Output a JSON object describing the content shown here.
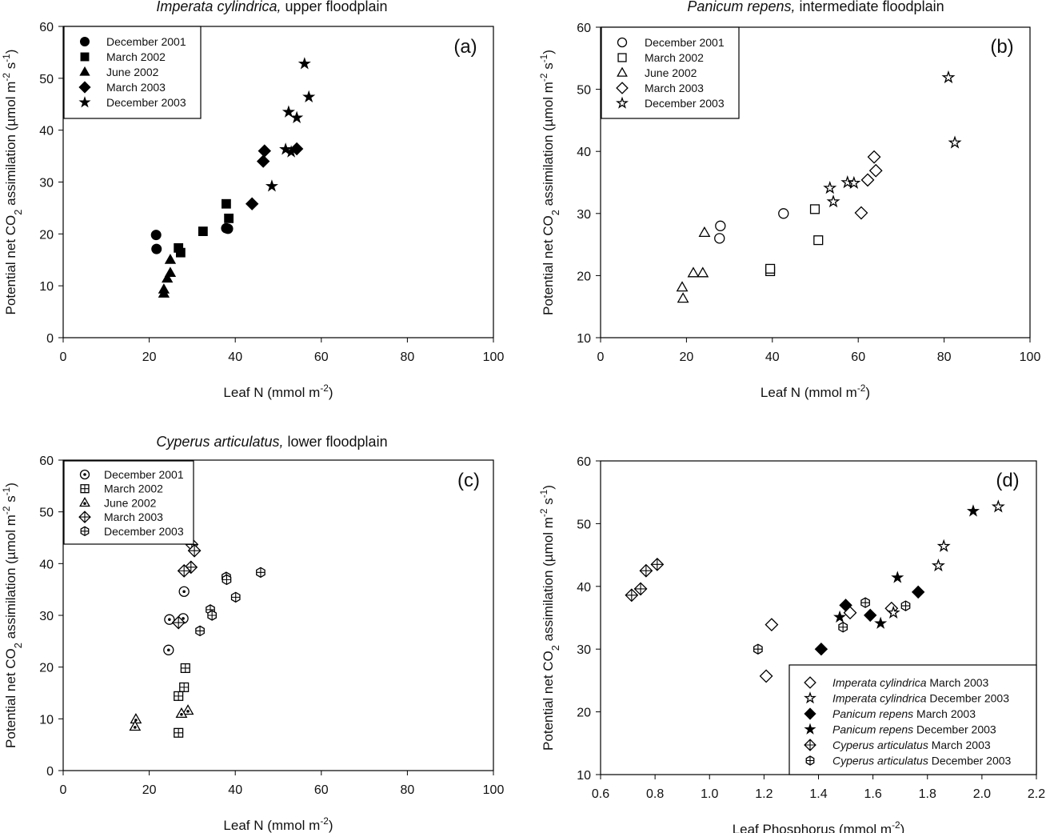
{
  "chart_data": [
    {
      "type": "scatter",
      "panel_label": "(a)",
      "title": [
        {
          "t": "Imperata cylindrica,",
          "i": true
        },
        {
          "t": " upper floodplain"
        }
      ],
      "xlabel": [
        {
          "t": "Leaf N (mmol m"
        },
        {
          "t": "-2",
          "sup": true
        },
        {
          "t": ")"
        }
      ],
      "ylabel": [
        {
          "t": "Potential net CO"
        },
        {
          "t": "2",
          "sub": true
        },
        {
          "t": " assimilation (µmol m"
        },
        {
          "t": "-2",
          "sup": true
        },
        {
          "t": " s"
        },
        {
          "t": "-1",
          "sup": true
        },
        {
          "t": ")"
        }
      ],
      "xlim": [
        0,
        100
      ],
      "ylim": [
        0,
        60
      ],
      "xticks": [
        0,
        20,
        40,
        60,
        80,
        100
      ],
      "yticks": [
        0,
        10,
        20,
        30,
        40,
        50,
        60
      ],
      "xtick_fmt": 0,
      "legend_placement": "top-left",
      "series": [
        {
          "name": "December 2001",
          "marker": "circle",
          "fill": true,
          "points": [
            [
              21.6,
              19.8
            ],
            [
              21.7,
              17.1
            ],
            [
              37.9,
              21.1
            ],
            [
              38.3,
              21.0
            ]
          ]
        },
        {
          "name": "March 2002",
          "marker": "square",
          "fill": true,
          "points": [
            [
              37.9,
              25.8
            ],
            [
              38.5,
              23.0
            ],
            [
              32.5,
              20.5
            ],
            [
              26.8,
              17.3
            ],
            [
              27.3,
              16.4
            ]
          ]
        },
        {
          "name": "June 2002",
          "marker": "triangle",
          "fill": true,
          "points": [
            [
              24.9,
              15.0
            ],
            [
              24.9,
              12.5
            ],
            [
              24.2,
              11.4
            ],
            [
              23.4,
              9.3
            ],
            [
              23.4,
              8.5
            ]
          ]
        },
        {
          "name": "March 2003",
          "marker": "diamond",
          "fill": true,
          "points": [
            [
              46.8,
              36.0
            ],
            [
              46.5,
              34.0
            ],
            [
              43.9,
              25.8
            ],
            [
              54.3,
              36.4
            ]
          ]
        },
        {
          "name": "December 2003",
          "marker": "star",
          "fill": true,
          "points": [
            [
              56.1,
              52.8
            ],
            [
              57.1,
              46.4
            ],
            [
              52.4,
              43.5
            ],
            [
              54.3,
              42.4
            ],
            [
              51.7,
              36.3
            ],
            [
              53.0,
              35.8
            ],
            [
              48.5,
              29.2
            ]
          ]
        }
      ]
    },
    {
      "type": "scatter",
      "panel_label": "(b)",
      "title": [
        {
          "t": "Panicum repens,",
          "i": true
        },
        {
          "t": " intermediate floodplain"
        }
      ],
      "xlabel": [
        {
          "t": "Leaf N (mmol m"
        },
        {
          "t": "-2",
          "sup": true
        },
        {
          "t": ")"
        }
      ],
      "ylabel": [
        {
          "t": "Potential net CO"
        },
        {
          "t": "2",
          "sub": true
        },
        {
          "t": " assimilation (µmol m"
        },
        {
          "t": "-2",
          "sup": true
        },
        {
          "t": " s"
        },
        {
          "t": "-1",
          "sup": true
        },
        {
          "t": ")"
        }
      ],
      "xlim": [
        0,
        100
      ],
      "ylim": [
        10,
        60
      ],
      "xticks": [
        0,
        20,
        40,
        60,
        80,
        100
      ],
      "yticks": [
        10,
        20,
        30,
        40,
        50,
        60
      ],
      "xtick_fmt": 0,
      "legend_placement": "top-left",
      "series": [
        {
          "name": "December 2001",
          "marker": "circle",
          "fill": false,
          "points": [
            [
              42.6,
              30.0
            ],
            [
              27.9,
              28.0
            ],
            [
              27.7,
              26.0
            ]
          ]
        },
        {
          "name": "March 2002",
          "marker": "square",
          "fill": false,
          "points": [
            [
              49.9,
              30.7
            ],
            [
              50.7,
              25.7
            ],
            [
              39.5,
              20.7
            ],
            [
              39.5,
              21.1
            ]
          ]
        },
        {
          "name": "June 2002",
          "marker": "triangle",
          "fill": false,
          "points": [
            [
              24.2,
              26.9
            ],
            [
              21.6,
              20.4
            ],
            [
              23.8,
              20.4
            ],
            [
              19.0,
              18.1
            ],
            [
              19.2,
              16.3
            ]
          ]
        },
        {
          "name": "March 2003",
          "marker": "diamond",
          "fill": false,
          "points": [
            [
              63.7,
              39.1
            ],
            [
              64.1,
              36.9
            ],
            [
              62.2,
              35.4
            ],
            [
              60.7,
              30.1
            ]
          ]
        },
        {
          "name": "December 2003",
          "marker": "star",
          "fill": false,
          "points": [
            [
              81.0,
              51.9
            ],
            [
              82.5,
              41.4
            ],
            [
              53.4,
              34.1
            ],
            [
              54.2,
              31.9
            ],
            [
              57.5,
              35.0
            ],
            [
              59.0,
              34.9
            ]
          ]
        }
      ]
    },
    {
      "type": "scatter",
      "panel_label": "(c)",
      "title": [
        {
          "t": "Cyperus articulatus,",
          "i": true
        },
        {
          "t": " lower floodplain"
        }
      ],
      "xlabel": [
        {
          "t": "Leaf N (mmol m"
        },
        {
          "t": "-2",
          "sup": true
        },
        {
          "t": ")"
        }
      ],
      "ylabel": [
        {
          "t": "Potential net CO"
        },
        {
          "t": "2",
          "sub": true
        },
        {
          "t": " assimilation (µmol m"
        },
        {
          "t": "-2",
          "sup": true
        },
        {
          "t": " s"
        },
        {
          "t": "-1",
          "sup": true
        },
        {
          "t": ")"
        }
      ],
      "xlim": [
        0,
        100
      ],
      "ylim": [
        0,
        60
      ],
      "xticks": [
        0,
        20,
        40,
        60,
        80,
        100
      ],
      "yticks": [
        0,
        10,
        20,
        30,
        40,
        50,
        60
      ],
      "xtick_fmt": 0,
      "legend_placement": "top-left",
      "series": [
        {
          "name": "December 2001",
          "marker": "circle-dot",
          "fill": false,
          "points": [
            [
              28.1,
              34.6
            ],
            [
              24.7,
              29.2
            ],
            [
              27.9,
              29.4
            ],
            [
              24.5,
              23.3
            ]
          ]
        },
        {
          "name": "March 2002",
          "marker": "square-cross",
          "fill": false,
          "points": [
            [
              28.4,
              19.8
            ],
            [
              28.1,
              16.1
            ],
            [
              26.8,
              14.4
            ],
            [
              26.8,
              7.3
            ]
          ]
        },
        {
          "name": "June 2002",
          "marker": "triangle-dot",
          "fill": false,
          "points": [
            [
              29.0,
              11.6
            ],
            [
              27.5,
              11.0
            ],
            [
              16.9,
              9.9
            ],
            [
              16.7,
              8.5
            ]
          ]
        },
        {
          "name": "March 2003",
          "marker": "diamond-cross",
          "fill": false,
          "points": [
            [
              29.9,
              43.7
            ],
            [
              30.5,
              42.5
            ],
            [
              29.7,
              39.3
            ],
            [
              28.1,
              38.6
            ],
            [
              26.8,
              28.6
            ]
          ]
        },
        {
          "name": "December 2003",
          "marker": "hex-cross",
          "fill": false,
          "points": [
            [
              45.9,
              38.3
            ],
            [
              37.9,
              37.4
            ],
            [
              38.0,
              36.9
            ],
            [
              40.1,
              33.5
            ],
            [
              34.2,
              31.1
            ],
            [
              34.6,
              30.0
            ],
            [
              31.8,
              27.0
            ]
          ]
        }
      ]
    },
    {
      "type": "scatter",
      "panel_label": "(d)",
      "title": [],
      "xlabel": [
        {
          "t": "Leaf Phosphorus (mmol m"
        },
        {
          "t": "-2",
          "sup": true
        },
        {
          "t": ")"
        }
      ],
      "ylabel": [
        {
          "t": "Potential net CO"
        },
        {
          "t": "2",
          "sub": true
        },
        {
          "t": " assimilation (µmol m"
        },
        {
          "t": "-2",
          "sup": true
        },
        {
          "t": " s"
        },
        {
          "t": "-1",
          "sup": true
        },
        {
          "t": ")"
        }
      ],
      "xlim": [
        0.6,
        2.2
      ],
      "ylim": [
        10,
        60
      ],
      "xticks": [
        0.6,
        0.8,
        1.0,
        1.2,
        1.4,
        1.6,
        1.8,
        2.0,
        2.2
      ],
      "yticks": [
        10,
        20,
        30,
        40,
        50,
        60
      ],
      "xtick_fmt": 1,
      "legend_placement": "bottom-right",
      "series": [
        {
          "name": "Imperata cylindrica",
          "name_suffix": " March 2003",
          "marker": "diamond",
          "fill": false,
          "points": [
            [
              1.228,
              33.9
            ],
            [
              1.208,
              25.7
            ],
            [
              1.516,
              35.8
            ],
            [
              1.668,
              36.5
            ]
          ]
        },
        {
          "name": "Imperata cylindrica",
          "name_suffix": " December 2003",
          "marker": "star",
          "fill": false,
          "points": [
            [
              2.06,
              52.7
            ],
            [
              1.86,
              46.4
            ],
            [
              1.84,
              43.3
            ],
            [
              1.675,
              35.8
            ]
          ]
        },
        {
          "name": "Panicum repens",
          "name_suffix": " March 2003",
          "marker": "diamond",
          "fill": true,
          "points": [
            [
              1.5,
              37.0
            ],
            [
              1.766,
              39.1
            ],
            [
              1.59,
              35.4
            ],
            [
              1.41,
              30.0
            ]
          ]
        },
        {
          "name": "Panicum repens",
          "name_suffix": " December 2003",
          "marker": "star",
          "fill": true,
          "points": [
            [
              1.968,
              52.0
            ],
            [
              1.69,
              41.4
            ],
            [
              1.478,
              35.1
            ],
            [
              1.628,
              34.1
            ]
          ]
        },
        {
          "name": "Cyperus articulatus",
          "name_suffix": " March 2003",
          "marker": "diamond-cross",
          "fill": false,
          "points": [
            [
              0.808,
              43.5
            ],
            [
              0.767,
              42.5
            ],
            [
              0.747,
              39.6
            ],
            [
              0.714,
              38.6
            ]
          ]
        },
        {
          "name": "Cyperus articulatus",
          "name_suffix": " December 2003",
          "marker": "hex-cross",
          "fill": false,
          "points": [
            [
              1.178,
              30.0
            ],
            [
              1.49,
              33.5
            ],
            [
              1.572,
              37.4
            ],
            [
              1.72,
              36.9
            ]
          ]
        }
      ]
    }
  ]
}
